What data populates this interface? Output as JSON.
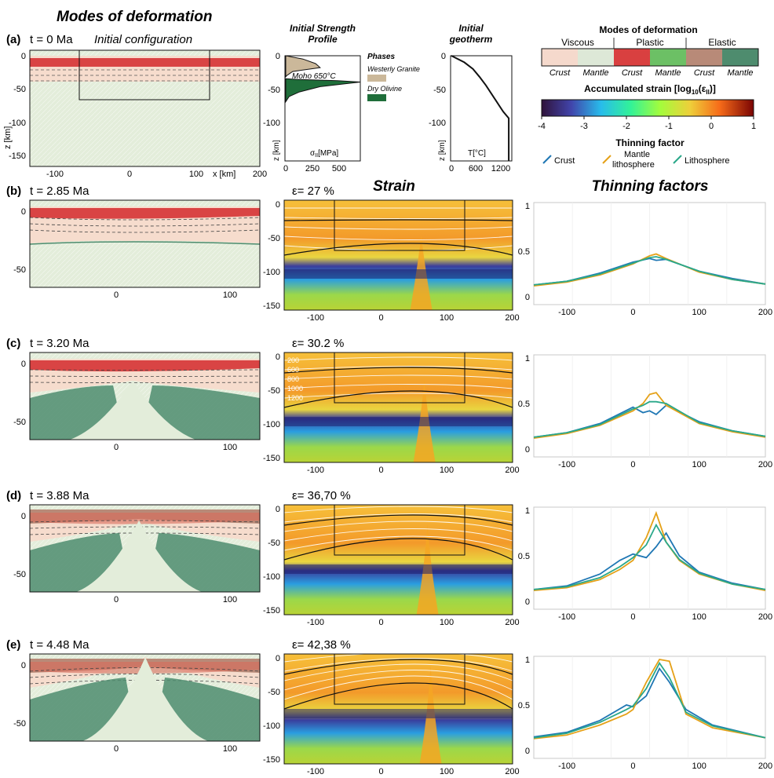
{
  "header": {
    "main_title": "Modes of deformation",
    "strength_title_1": "Initial Strength",
    "strength_title_2": "Profile",
    "geotherm_title_1": "Initial",
    "geotherm_title_2": "geotherm",
    "strain_title": "Strain",
    "thinning_title": "Thinning factors"
  },
  "panel_a": {
    "label": "(a)",
    "time": "t = 0 Ma",
    "subtitle": "Initial configuration",
    "x_ticks": [
      "-100",
      "0",
      "100",
      "200"
    ],
    "y_ticks": [
      "0",
      "-50",
      "-100",
      "-150"
    ],
    "ylabel": "z [km]",
    "xunit": "x [km]"
  },
  "strength_profile": {
    "moho_label": "Moho 650°C",
    "xlabel": "σII[MPa]",
    "xlabel_main": "σ",
    "xlabel_sub": "II",
    "xlabel_unit": "[MPa]",
    "ylabel": "z [km]",
    "x_ticks": [
      "0",
      "250",
      "500"
    ],
    "y_ticks": [
      "0",
      "-50",
      "-100",
      "-150"
    ],
    "phases_title": "Phases",
    "phases": [
      {
        "name": "Westerly Granite",
        "color": "#cbb89a"
      },
      {
        "name": "Dry Olivine",
        "color": "#1f6e3a"
      }
    ]
  },
  "geotherm": {
    "xlabel": "T[°C]",
    "ylabel": "z [km]",
    "x_ticks": [
      "0",
      "600",
      "1200"
    ],
    "y_ticks": [
      "0",
      "-50",
      "-100",
      "-150"
    ]
  },
  "legend": {
    "modes_title": "Modes of deformation",
    "groups": [
      "Viscous",
      "Plastic",
      "Elastic"
    ],
    "swatches": [
      {
        "label": "Crust",
        "color": "#f5d9cc"
      },
      {
        "label": "Mantle",
        "color": "#dde8d7"
      },
      {
        "label": "Crust",
        "color": "#d94040"
      },
      {
        "label": "Mantle",
        "color": "#6cc065"
      },
      {
        "label": "Crust",
        "color": "#b88a78"
      },
      {
        "label": "Mantle",
        "color": "#4e8c6e"
      }
    ],
    "strain_title": "Accumulated strain [log10(εII)]",
    "strain_title_main": "Accumulated strain [log",
    "strain_title_sub": "10",
    "strain_title_mid": "(ε",
    "strain_title_sub2": "II",
    "strain_title_end": ")]",
    "colorbar_ticks": [
      "-4",
      "-3",
      "-2",
      "-1",
      "0",
      "1"
    ],
    "thinning_title": "Thinning factor",
    "thinning_series": [
      "Crust",
      "Mantle lithosphere",
      "Lithosphere"
    ],
    "thinning_series_line1": [
      "Crust",
      "Mantle",
      "Lithosphere"
    ],
    "thinning_series_line2": [
      "",
      "lithosphere",
      ""
    ]
  },
  "rows": [
    {
      "label": "(b)",
      "time": "t = 2.85 Ma",
      "strain": "ε= 27 %"
    },
    {
      "label": "(c)",
      "time": "t = 3.20 Ma",
      "strain": "ε= 30.2 %",
      "isotherms": [
        "200",
        "600",
        "800",
        "1000",
        "1200"
      ]
    },
    {
      "label": "(d)",
      "time": "t = 3.88 Ma",
      "strain": "ε= 36,70 %"
    },
    {
      "label": "(e)",
      "time": "t = 4.48 Ma",
      "strain": "ε= 42,38 %"
    }
  ],
  "axes": {
    "deform_x_ticks": [
      "0",
      "100"
    ],
    "deform_y_ticks": [
      "0",
      "-50"
    ],
    "strain_x_ticks": [
      "-100",
      "0",
      "100",
      "200"
    ],
    "strain_y_ticks": [
      "0",
      "-50",
      "-100",
      "-150"
    ],
    "thin_x_ticks": [
      "-100",
      "0",
      "100",
      "200"
    ],
    "thin_y_ticks": [
      "1",
      "0.5",
      "0"
    ]
  },
  "colors": {
    "crust_series": "#1f77b4",
    "mantle_series": "#e5a118",
    "lith_series": "#2aa88a"
  },
  "chart_data": [
    {
      "type": "line",
      "title": "Initial geotherm",
      "xlabel": "T[°C]",
      "ylabel": "z [km]",
      "x": [
        0,
        300,
        500,
        650,
        800,
        1000,
        1200,
        1330,
        1330
      ],
      "y": [
        0,
        -10,
        -20,
        -32,
        -45,
        -65,
        -85,
        -95,
        -160
      ],
      "xlim": [
        0,
        1400
      ],
      "ylim": [
        -160,
        0
      ]
    },
    {
      "type": "area",
      "title": "Initial Strength Profile",
      "xlabel": "σII[MPa]",
      "ylabel": "z [km]",
      "series": [
        {
          "name": "Westerly Granite",
          "x": [
            0,
            150,
            260,
            300,
            60,
            10,
            0
          ],
          "y": [
            0,
            -5,
            -12,
            -18,
            -24,
            -30,
            -32
          ]
        },
        {
          "name": "Dry Olivine",
          "x": [
            0,
            100,
            450,
            650,
            300,
            120,
            30,
            0
          ],
          "y": [
            -35,
            -36,
            -38,
            -40,
            -47,
            -55,
            -62,
            -70
          ]
        }
      ],
      "xlim": [
        0,
        650
      ],
      "ylim": [
        -160,
        0
      ]
    },
    {
      "type": "line",
      "title": "Thinning factors t = 2.85 Ma",
      "x": [
        -150,
        -100,
        -50,
        0,
        25,
        35,
        50,
        100,
        150,
        200
      ],
      "series": [
        {
          "name": "Crust",
          "values": [
            0.13,
            0.17,
            0.26,
            0.38,
            0.42,
            0.4,
            0.41,
            0.28,
            0.2,
            0.14
          ]
        },
        {
          "name": "Mantle lithosphere",
          "values": [
            0.12,
            0.16,
            0.24,
            0.36,
            0.45,
            0.47,
            0.42,
            0.27,
            0.19,
            0.14
          ]
        },
        {
          "name": "Lithosphere",
          "values": [
            0.13,
            0.17,
            0.25,
            0.37,
            0.43,
            0.44,
            0.41,
            0.28,
            0.19,
            0.14
          ]
        }
      ],
      "ylim": [
        0,
        1
      ]
    },
    {
      "type": "line",
      "title": "Thinning factors t = 3.20 Ma",
      "x": [
        -150,
        -100,
        -50,
        0,
        15,
        25,
        35,
        50,
        100,
        150,
        200
      ],
      "series": [
        {
          "name": "Crust",
          "values": [
            0.13,
            0.18,
            0.28,
            0.46,
            0.4,
            0.42,
            0.38,
            0.48,
            0.3,
            0.2,
            0.14
          ]
        },
        {
          "name": "Mantle lithosphere",
          "values": [
            0.12,
            0.17,
            0.26,
            0.42,
            0.5,
            0.6,
            0.62,
            0.48,
            0.28,
            0.19,
            0.13
          ]
        },
        {
          "name": "Lithosphere",
          "values": [
            0.13,
            0.18,
            0.27,
            0.44,
            0.48,
            0.52,
            0.52,
            0.5,
            0.29,
            0.2,
            0.14
          ]
        }
      ],
      "ylim": [
        0,
        1
      ]
    },
    {
      "type": "line",
      "title": "Thinning factors t = 3.88 Ma",
      "x": [
        -150,
        -100,
        -50,
        -20,
        0,
        20,
        35,
        50,
        70,
        100,
        150,
        200
      ],
      "series": [
        {
          "name": "Crust",
          "values": [
            0.13,
            0.17,
            0.3,
            0.45,
            0.52,
            0.48,
            0.6,
            0.75,
            0.5,
            0.32,
            0.2,
            0.13
          ]
        },
        {
          "name": "Mantle lithosphere",
          "values": [
            0.12,
            0.15,
            0.24,
            0.35,
            0.45,
            0.7,
            0.97,
            0.65,
            0.45,
            0.3,
            0.19,
            0.12
          ]
        },
        {
          "name": "Lithosphere",
          "values": [
            0.13,
            0.16,
            0.26,
            0.38,
            0.48,
            0.62,
            0.84,
            0.65,
            0.46,
            0.31,
            0.19,
            0.13
          ]
        }
      ],
      "ylim": [
        0,
        1
      ]
    },
    {
      "type": "line",
      "title": "Thinning factors t = 4.48 Ma",
      "x": [
        -150,
        -100,
        -50,
        -10,
        0,
        20,
        40,
        55,
        80,
        120,
        200
      ],
      "series": [
        {
          "name": "Crust",
          "values": [
            0.15,
            0.2,
            0.33,
            0.5,
            0.48,
            0.6,
            0.9,
            0.75,
            0.45,
            0.28,
            0.14
          ]
        },
        {
          "name": "Mantle lithosphere",
          "values": [
            0.13,
            0.17,
            0.28,
            0.4,
            0.45,
            0.75,
            1.0,
            0.98,
            0.4,
            0.25,
            0.14
          ]
        },
        {
          "name": "Lithosphere",
          "values": [
            0.14,
            0.19,
            0.31,
            0.45,
            0.49,
            0.68,
            0.96,
            0.8,
            0.42,
            0.27,
            0.14
          ]
        }
      ],
      "ylim": [
        0,
        1
      ]
    }
  ]
}
